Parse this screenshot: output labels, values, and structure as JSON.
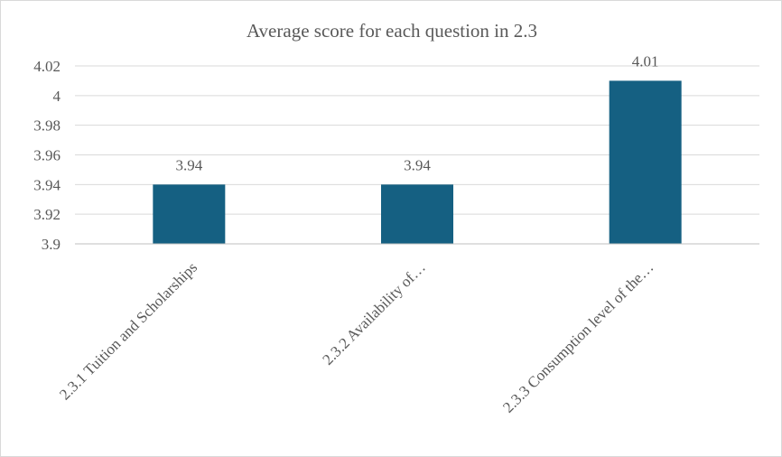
{
  "chart_data": {
    "type": "bar",
    "title": "Average score for each question in 2.3",
    "xlabel": "",
    "ylabel": "",
    "categories": [
      "2.3.1 Tuition and Scholarships",
      "2.3.2 Availability of…",
      "2.3.3 Consumption level of the…"
    ],
    "values": [
      3.94,
      3.94,
      4.01
    ],
    "data_labels": [
      "3.94",
      "3.94",
      "4.01"
    ],
    "ylim": [
      3.9,
      4.02
    ],
    "yticks": [
      3.9,
      3.92,
      3.94,
      3.96,
      3.98,
      4,
      4.02
    ],
    "ytick_labels": [
      "3.9",
      "3.92",
      "3.94",
      "3.96",
      "3.98",
      "4",
      "4.02"
    ],
    "grid": true,
    "legend": "none",
    "bar_color": "#156082",
    "gridline_color": "#d9d9d9",
    "text_color": "#595959"
  }
}
